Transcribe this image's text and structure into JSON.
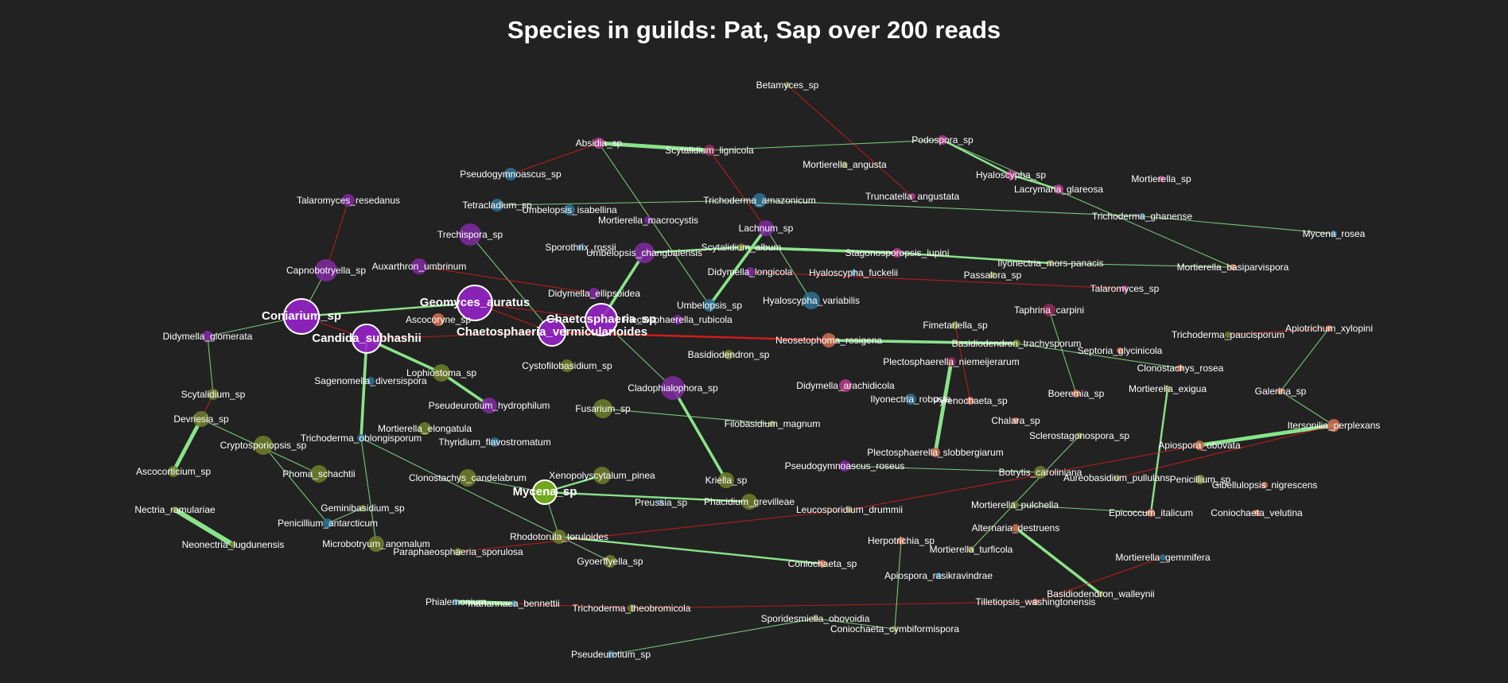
{
  "title": "Species in guilds: Pat, Sap over 200 reads",
  "colors": {
    "background": "#222222",
    "positive_edge": "#90ee90",
    "negative_edge": "#dd1c1c",
    "purple": "#7b2a9a",
    "bright_purple": "#9622c8",
    "olive": "#6b7a2a",
    "lime": "#7ab51d",
    "teal": "#2d6e8e",
    "pink": "#b03a88",
    "salmon": "#c86a4e",
    "darkpink": "#8e2a55"
  },
  "nodes": [
    {
      "id": "Betamyces_sp",
      "label": "Betamyces_sp",
      "color": "olive"
    },
    {
      "id": "Absidia_sp",
      "label": "Absidia_sp",
      "color": "pink"
    },
    {
      "id": "Scytalidium_lignicola",
      "label": "Scytalidium_lignicola",
      "color": "darkpink"
    },
    {
      "id": "Podospora_sp",
      "label": "Podospora_sp",
      "color": "pink"
    },
    {
      "id": "Mortierella_angusta",
      "label": "Mortierella_angusta",
      "color": "olive"
    },
    {
      "id": "Pseudogymnoascus_sp",
      "label": "Pseudogymnoascus_sp",
      "color": "teal"
    },
    {
      "id": "Hyaloscypha_sp",
      "label": "Hyaloscypha_sp",
      "color": "pink"
    },
    {
      "id": "Mortierella_sp",
      "label": "Mortierella_sp",
      "color": "pink"
    },
    {
      "id": "Lacrymaria_glareosa",
      "label": "Lacrymaria_glareosa",
      "color": "pink"
    },
    {
      "id": "Talaromyces_resedanus",
      "label": "Talaromyces_resedanus",
      "color": "purple"
    },
    {
      "id": "Truncatella_angustata",
      "label": "Truncatella_angustata",
      "color": "pink"
    },
    {
      "id": "Tetracladium_sp",
      "label": "Tetracladium_sp",
      "color": "teal"
    },
    {
      "id": "Trichoderma_amazonicum",
      "label": "Trichoderma_amazonicum",
      "color": "teal"
    },
    {
      "id": "Umbelopsis_isabellina",
      "label": "Umbelopsis_isabellina",
      "color": "teal"
    },
    {
      "id": "Mortierella_macrocystis",
      "label": "Mortierella_macrocystis",
      "color": "purple"
    },
    {
      "id": "Trichoderma_ghanense",
      "label": "Trichoderma_ghanense",
      "color": "teal"
    },
    {
      "id": "Lachnum_sp",
      "label": "Lachnum_sp",
      "color": "purple"
    },
    {
      "id": "Mycena_rosea",
      "label": "Mycena_rosea",
      "color": "teal"
    },
    {
      "id": "Trechispora_sp",
      "label": "Trechispora_sp",
      "color": "purple"
    },
    {
      "id": "Sporothrix_rossii",
      "label": "Sporothrix_rossii",
      "color": "teal"
    },
    {
      "id": "Umbelopsis_changbaiensis",
      "label": "Umbelopsis_changbaiensis",
      "color": "purple"
    },
    {
      "id": "Scytalidium_album",
      "label": "Scytalidium_album",
      "color": "olive"
    },
    {
      "id": "Stagonosporopsis_lupini",
      "label": "Stagonosporopsis_lupini",
      "color": "pink"
    },
    {
      "id": "Ilyonectria_mors_panacis",
      "label": "Ilyonectria_mors-panacis",
      "color": "olive"
    },
    {
      "id": "Capnobotryella_sp",
      "label": "Capnobotryella_sp",
      "color": "purple"
    },
    {
      "id": "Auxarthron_umbrinum",
      "label": "Auxarthron_umbrinum",
      "color": "purple"
    },
    {
      "id": "Didymella_longicola",
      "label": "Didymella_longicola",
      "color": "purple"
    },
    {
      "id": "Hyaloscypha_fuckelii",
      "label": "Hyaloscypha_fuckelii",
      "color": "teal"
    },
    {
      "id": "Passalora_sp",
      "label": "Passalora_sp",
      "color": "olive"
    },
    {
      "id": "Mortierella_basiparvispora",
      "label": "Mortierella_basiparvispora",
      "color": "salmon"
    },
    {
      "id": "Talaromyces_sp",
      "label": "Talaromyces_sp",
      "color": "pink"
    },
    {
      "id": "Didymella_ellipsoidea",
      "label": "Didymella_ellipsoidea",
      "color": "purple"
    },
    {
      "id": "Hyaloscypha_variabilis",
      "label": "Hyaloscypha_variabilis",
      "color": "teal"
    },
    {
      "id": "Geomyces_auratus",
      "label": "Geomyces_auratus",
      "color": "bright_purple",
      "big": true
    },
    {
      "id": "Umbelopsis_sp",
      "label": "Umbelopsis_sp",
      "color": "teal"
    },
    {
      "id": "Taphrina_carpini",
      "label": "Taphrina_carpini",
      "color": "darkpink"
    },
    {
      "id": "Coniarium_sp",
      "label": "Coniarium_sp",
      "color": "bright_purple",
      "big": true
    },
    {
      "id": "Chaetosphaeria_sp",
      "label": "Chaetosphaeria_sp",
      "color": "bright_purple",
      "big": true
    },
    {
      "id": "Ascocoryne_sp",
      "label": "Ascocoryne_sp",
      "color": "salmon"
    },
    {
      "id": "Fimetariella_sp",
      "label": "Fimetariella_sp",
      "color": "olive"
    },
    {
      "id": "Apiotrichum_xylopini",
      "label": "Apiotrichum_xylopini",
      "color": "salmon"
    },
    {
      "id": "Chaetosphaeria_vermicularioides",
      "label": "Chaetosphaeria_vermicularioides",
      "color": "bright_purple",
      "big": true
    },
    {
      "id": "Plectosphaerella_rubicola",
      "label": "Plectosphaerella_rubicola",
      "color": "purple"
    },
    {
      "id": "Trichoderma_paucisporum",
      "label": "Trichoderma_paucisporum",
      "color": "olive"
    },
    {
      "id": "Didymella_glomerata",
      "label": "Didymella_glomerata",
      "color": "purple"
    },
    {
      "id": "Candida_subhashii",
      "label": "Candida_subhashii",
      "color": "bright_purple",
      "big": true
    },
    {
      "id": "Neosetophoma_rosigena",
      "label": "Neosetophoma_rosigena",
      "color": "salmon"
    },
    {
      "id": "Basidiodendron_trachysporum",
      "label": "Basidiodendron_trachysporum",
      "color": "olive"
    },
    {
      "id": "Septoria_glycinicola",
      "label": "Septoria_glycinicola",
      "color": "salmon"
    },
    {
      "id": "Basidiodendron_sp",
      "label": "Basidiodendron_sp",
      "color": "olive"
    },
    {
      "id": "Plectosphaerella_niemeijerarum",
      "label": "Plectosphaerella_niemeijerarum",
      "color": "darkpink"
    },
    {
      "id": "Clonostachys_rosea",
      "label": "Clonostachys_rosea",
      "color": "salmon"
    },
    {
      "id": "Lophiostoma_sp",
      "label": "Lophiostoma_sp",
      "color": "olive"
    },
    {
      "id": "Cystofilobasidium_sp",
      "label": "Cystofilobasidium_sp",
      "color": "olive"
    },
    {
      "id": "Sagenomella_diversispora",
      "label": "Sagenomella_diversispora",
      "color": "teal"
    },
    {
      "id": "Didymella_arachidicola",
      "label": "Didymella_arachidicola",
      "color": "pink"
    },
    {
      "id": "Cladophialophora_sp",
      "label": "Cladophialophora_sp",
      "color": "purple"
    },
    {
      "id": "Boeremia_sp",
      "label": "Boeremia_sp",
      "color": "salmon"
    },
    {
      "id": "Mortierella_exigua",
      "label": "Mortierella_exigua",
      "color": "olive"
    },
    {
      "id": "Galerina_sp",
      "label": "Galerina_sp",
      "color": "salmon"
    },
    {
      "id": "Scytalidium_sp",
      "label": "Scytalidium_sp",
      "color": "olive"
    },
    {
      "id": "Ilyonectria_robusta",
      "label": "Ilyonectria_robusta",
      "color": "teal"
    },
    {
      "id": "Pyrenochaeta_sp",
      "label": "Pyrenochaeta_sp",
      "color": "salmon"
    },
    {
      "id": "Pseudeurotium_hydrophilum",
      "label": "Pseudeurotium_hydrophilum",
      "color": "purple"
    },
    {
      "id": "Fusarium_sp",
      "label": "Fusarium_sp",
      "color": "olive"
    },
    {
      "id": "Devriesia_sp",
      "label": "Devriesia_sp",
      "color": "olive"
    },
    {
      "id": "Chalara_sp",
      "label": "Chalara_sp",
      "color": "salmon"
    },
    {
      "id": "Filobasidium_magnum",
      "label": "Filobasidium_magnum",
      "color": "olive"
    },
    {
      "id": "Itersonilia_perplexans",
      "label": "Itersonilia_perplexans",
      "color": "salmon"
    },
    {
      "id": "Mortierella_elongatula",
      "label": "Mortierella_elongatula",
      "color": "olive"
    },
    {
      "id": "Trichoderma_oblongisporum",
      "label": "Trichoderma_oblongisporum",
      "color": "teal"
    },
    {
      "id": "Sclerostagonospora_sp",
      "label": "Sclerostagonospora_sp",
      "color": "olive"
    },
    {
      "id": "Cryptosporiopsis_sp",
      "label": "Cryptosporiopsis_sp",
      "color": "olive"
    },
    {
      "id": "Thyridium_flavostromatum",
      "label": "Thyridium_flavostromatum",
      "color": "teal"
    },
    {
      "id": "Apiospora_obovata",
      "label": "Apiospora_obovata",
      "color": "salmon"
    },
    {
      "id": "Plectosphaerella_slobbergiarum",
      "label": "Plectosphaerella_slobbergiarum",
      "color": "salmon"
    },
    {
      "id": "Ascocorticium_sp",
      "label": "Ascocorticium_sp",
      "color": "olive"
    },
    {
      "id": "Phoma_schachtii",
      "label": "Phoma_schachtii",
      "color": "olive"
    },
    {
      "id": "Pseudogymnoascus_roseus",
      "label": "Pseudogymnoascus_roseus",
      "color": "purple"
    },
    {
      "id": "Botrytis_caroliniana",
      "label": "Botrytis_caroliniana",
      "color": "olive"
    },
    {
      "id": "Clonostachys_candelabrum",
      "label": "Clonostachys_candelabrum",
      "color": "olive"
    },
    {
      "id": "Xenopolyscytalum_pinea",
      "label": "Xenopolyscytalum_pinea",
      "color": "olive"
    },
    {
      "id": "Aureobasidium_pullulans",
      "label": "Aureobasidium_pullulans",
      "color": "olive"
    },
    {
      "id": "Penicillium_sp",
      "label": "Penicillium_sp",
      "color": "olive"
    },
    {
      "id": "Kriella_sp",
      "label": "Kriella_sp",
      "color": "olive"
    },
    {
      "id": "Gibellulopsis_nigrescens",
      "label": "Gibellulopsis_nigrescens",
      "color": "salmon"
    },
    {
      "id": "Mycena_sp",
      "label": "Mycena_sp",
      "color": "lime",
      "big": true
    },
    {
      "id": "Nectria_ramulariae",
      "label": "Nectria_ramulariae",
      "color": "olive"
    },
    {
      "id": "Geminibasidium_sp",
      "label": "Geminibasidium_sp",
      "color": "olive"
    },
    {
      "id": "Preussia_sp",
      "label": "Preussia_sp",
      "color": "teal"
    },
    {
      "id": "Phacidium_grevilleae",
      "label": "Phacidium_grevilleae",
      "color": "olive"
    },
    {
      "id": "Leucosporidium_drummii",
      "label": "Leucosporidium_drummii",
      "color": "olive"
    },
    {
      "id": "Mortierella_pulchella",
      "label": "Mortierella_pulchella",
      "color": "olive"
    },
    {
      "id": "Epicoccum_italicum",
      "label": "Epicoccum_italicum",
      "color": "salmon"
    },
    {
      "id": "Coniochaeta_velutina",
      "label": "Coniochaeta_velutina",
      "color": "salmon"
    },
    {
      "id": "Penicillium_antarcticum",
      "label": "Penicillium_antarcticum",
      "color": "teal"
    },
    {
      "id": "Neonectria_lugdunensis",
      "label": "Neonectria_lugdunensis",
      "color": "olive"
    },
    {
      "id": "Microbotryum_anomalum",
      "label": "Microbotryum_anomalum",
      "color": "olive"
    },
    {
      "id": "Rhodotorula_toruloides",
      "label": "Rhodotorula_toruloides",
      "color": "olive"
    },
    {
      "id": "Herpotrichia_sp",
      "label": "Herpotrichia_sp",
      "color": "salmon"
    },
    {
      "id": "Alternaria_destruens",
      "label": "Alternaria_destruens",
      "color": "salmon"
    },
    {
      "id": "Paraphaeosphaeria_sporulosa",
      "label": "Paraphaeosphaeria_sporulosa",
      "color": "olive"
    },
    {
      "id": "Mortierella_turficola",
      "label": "Mortierella_turficola",
      "color": "olive"
    },
    {
      "id": "Gyoerffyella_sp",
      "label": "Gyoerffyella_sp",
      "color": "olive"
    },
    {
      "id": "Coniochaeta_sp",
      "label": "Coniochaeta_sp",
      "color": "salmon"
    },
    {
      "id": "Mortierella_gemmifera",
      "label": "Mortierella_gemmifera",
      "color": "teal"
    },
    {
      "id": "Apiospora_rasikravindrae",
      "label": "Apiospora_rasikravindrae",
      "color": "teal"
    },
    {
      "id": "Basidiodendron_walleynii",
      "label": "Basidiodendron_walleynii",
      "color": "olive"
    },
    {
      "id": "Phialemonium",
      "label": "Phialemonium",
      "color": "teal"
    },
    {
      "id": "Mariannaea_bennettii",
      "label": "mariannaea_bennettii",
      "color": "teal"
    },
    {
      "id": "Trichoderma_theobromicola",
      "label": "Trichoderma_theobromicola",
      "color": "olive"
    },
    {
      "id": "Tilletiopsis_washingtonensis",
      "label": "Tilletiopsis_washingtonensis",
      "color": "salmon"
    },
    {
      "id": "Sporidesmiella_obovoidia",
      "label": "Sporidesmiella_obovoidia",
      "color": "olive"
    },
    {
      "id": "Coniochaeta_cymbiformispora",
      "label": "Coniochaeta_cymbiformispora",
      "color": "olive"
    },
    {
      "id": "Pseudeurotium_sp",
      "label": "Pseudeurotium_sp",
      "color": "teal"
    }
  ],
  "edges": [
    [
      "Betamyces_sp",
      "Truncatella_angustata",
      "neg",
      1
    ],
    [
      "Absidia_sp",
      "Scytalidium_lignicola",
      "pos",
      4
    ],
    [
      "Absidia_sp",
      "Umbelopsis_sp",
      "pos",
      1
    ],
    [
      "Absidia_sp",
      "Pseudogymnoascus_sp",
      "neg",
      1
    ],
    [
      "Scytalidium_lignicola",
      "Podospora_sp",
      "pos",
      1
    ],
    [
      "Scytalidium_lignicola",
      "Lachnum_sp",
      "neg",
      1
    ],
    [
      "Podospora_sp",
      "Hyaloscypha_sp",
      "pos",
      2
    ],
    [
      "Podospora_sp",
      "Mortierella_basiparvispora",
      "pos",
      1
    ],
    [
      "Hyaloscypha_sp",
      "Lacrymaria_glareosa",
      "pos",
      2
    ],
    [
      "Tetracladium_sp",
      "Trichoderma_amazonicum",
      "pos",
      1
    ],
    [
      "Trichoderma_amazonicum",
      "Trichoderma_ghanense",
      "pos",
      1
    ],
    [
      "Trichoderma_ghanense",
      "Mycena_rosea",
      "pos",
      1
    ],
    [
      "Talaromyces_resedanus",
      "Capnobotryella_sp",
      "neg",
      1
    ],
    [
      "Trechispora_sp",
      "Chaetosphaeria_vermicularioides",
      "pos",
      1
    ],
    [
      "Umbelopsis_changbaiensis",
      "Scytalidium_album",
      "pos",
      2
    ],
    [
      "Scytalidium_album",
      "Stagonosporopsis_lupini",
      "pos",
      3
    ],
    [
      "Stagonosporopsis_lupini",
      "Ilyonectria_mors_panacis",
      "pos",
      2
    ],
    [
      "Ilyonectria_mors_panacis",
      "Mortierella_basiparvispora",
      "pos",
      1
    ],
    [
      "Lachnum_sp",
      "Umbelopsis_sp",
      "pos",
      3
    ],
    [
      "Lachnum_sp",
      "Hyaloscypha_variabilis",
      "pos",
      1
    ],
    [
      "Coniarium_sp",
      "Geomyces_auratus",
      "pos",
      2
    ],
    [
      "Coniarium_sp",
      "Candida_subhashii",
      "neg",
      1
    ],
    [
      "Coniarium_sp",
      "Didymella_glomerata",
      "pos",
      1
    ],
    [
      "Geomyces_auratus",
      "Chaetosphaeria_vermicularioides",
      "neg",
      1
    ],
    [
      "Geomyces_auratus",
      "Chaetosphaeria_sp",
      "neg",
      1
    ],
    [
      "Candida_subhashii",
      "Chaetosphaeria_vermicularioides",
      "neg",
      1
    ],
    [
      "Candida_subhashii",
      "Lophiostoma_sp",
      "pos",
      3
    ],
    [
      "Candida_subhashii",
      "Trichoderma_oblongisporum",
      "pos",
      3
    ],
    [
      "Chaetosphaeria_sp",
      "Umbelopsis_changbaiensis",
      "pos",
      3
    ],
    [
      "Chaetosphaeria_sp",
      "Cladophialophora_sp",
      "pos",
      1
    ],
    [
      "Chaetosphaeria_vermicularioides",
      "Neosetophoma_rosigena",
      "neg",
      2
    ],
    [
      "Lophiostoma_sp",
      "Pseudeurotium_hydrophilum",
      "pos",
      3
    ],
    [
      "Neosetophoma_rosigena",
      "Basidiodendron_trachysporum",
      "pos",
      3
    ],
    [
      "Basidiodendron_trachysporum",
      "Clonostachys_rosea",
      "pos",
      1
    ],
    [
      "Plectosphaerella_niemeijerarum",
      "Plectosphaerella_slobbergiarum",
      "pos",
      4
    ],
    [
      "Taphrina_carpini",
      "Boeremia_sp",
      "pos",
      1
    ],
    [
      "Fimetariella_sp",
      "Pyrenochaeta_sp",
      "neg",
      1
    ],
    [
      "Apiotrichum_xylopini",
      "Galerina_sp",
      "pos",
      1
    ],
    [
      "Apiotrichum_xylopini",
      "Trichoderma_paucisporum",
      "neg",
      1
    ],
    [
      "Itersonilia_perplexans",
      "Apiospora_obovata",
      "pos",
      4
    ],
    [
      "Itersonilia_perplexans",
      "Galerina_sp",
      "pos",
      1
    ],
    [
      "Itersonilia_perplexans",
      "Aureobasidium_pullulans",
      "neg",
      1
    ],
    [
      "Devriesia_sp",
      "Ascocorticium_sp",
      "pos",
      4
    ],
    [
      "Devriesia_sp",
      "Phoma_schachtii",
      "pos",
      1
    ],
    [
      "Devriesia_sp",
      "Scytalidium_sp",
      "neg",
      1
    ],
    [
      "Cryptosporiopsis_sp",
      "Penicillium_antarcticum",
      "pos",
      1
    ],
    [
      "Nectria_ramulariae",
      "Neonectria_lugdunensis",
      "pos",
      5
    ],
    [
      "Trichoderma_oblongisporum",
      "Microbotryum_anomalum",
      "pos",
      1
    ],
    [
      "Mycena_sp",
      "Xenopolyscytalum_pinea",
      "pos",
      2
    ],
    [
      "Mycena_sp",
      "Phacidium_grevilleae",
      "pos",
      2
    ],
    [
      "Mycena_sp",
      "Clonostachys_candelabrum",
      "pos",
      1
    ],
    [
      "Mycena_sp",
      "Rhodotorula_toruloides",
      "pos",
      1
    ],
    [
      "Cladophialophora_sp",
      "Kriella_sp",
      "pos",
      3
    ],
    [
      "Rhodotorula_toruloides",
      "Coniochaeta_sp",
      "pos",
      2
    ],
    [
      "Phialemonium",
      "Mariannaea_bennettii",
      "pos",
      4
    ],
    [
      "Mariannaea_bennettii",
      "Trichoderma_theobromicola",
      "neg",
      1
    ],
    [
      "Trichoderma_theobromicola",
      "Tilletiopsis_washingtonensis",
      "neg",
      1
    ],
    [
      "Alternaria_destruens",
      "Basidiodendron_walleynii",
      "pos",
      3
    ],
    [
      "Mortierella_pulchella",
      "Epicoccum_italicum",
      "pos",
      1
    ],
    [
      "Epicoccum_italicum",
      "Mortierella_exigua",
      "pos",
      2
    ],
    [
      "Sporidesmiella_obovoidia",
      "Coniochaeta_cymbiformispora",
      "pos",
      1
    ],
    [
      "Pseudeurotium_sp",
      "Sporidesmiella_obovoidia",
      "pos",
      1
    ],
    [
      "Herpotrichia_sp",
      "Coniochaeta_cymbiformispora",
      "pos",
      1
    ],
    [
      "Leucosporidium_drummii",
      "Apiospora_obovata",
      "neg",
      1
    ],
    [
      "Pseudogymnoascus_roseus",
      "Botrytis_caroliniana",
      "pos",
      1
    ],
    [
      "Gyoerffyella_sp",
      "Trichoderma_oblongisporum",
      "pos",
      1
    ],
    [
      "Paraphaeosphaeria_sporulosa",
      "Leucosporidium_drummii",
      "neg",
      1
    ],
    [
      "Didymella_glomerata",
      "Scytalidium_sp",
      "pos",
      1
    ],
    [
      "Capnobotryella_sp",
      "Coniarium_sp",
      "pos",
      1
    ],
    [
      "Auxarthron_umbrinum",
      "Didymella_ellipsoidea",
      "neg",
      1
    ],
    [
      "Didymella_longicola",
      "Talaromyces_sp",
      "neg",
      1
    ],
    [
      "Fusarium_sp",
      "Filobasidium_magnum",
      "pos",
      1
    ],
    [
      "Sclerostagonospora_sp",
      "Mortierella_turficola",
      "pos",
      1
    ],
    [
      "Mortierella_gemmifera",
      "Tilletiopsis_washingtonensis",
      "neg",
      1
    ],
    [
      "Geminibasidium_sp",
      "Penicillium_antarcticum",
      "pos",
      1
    ]
  ]
}
